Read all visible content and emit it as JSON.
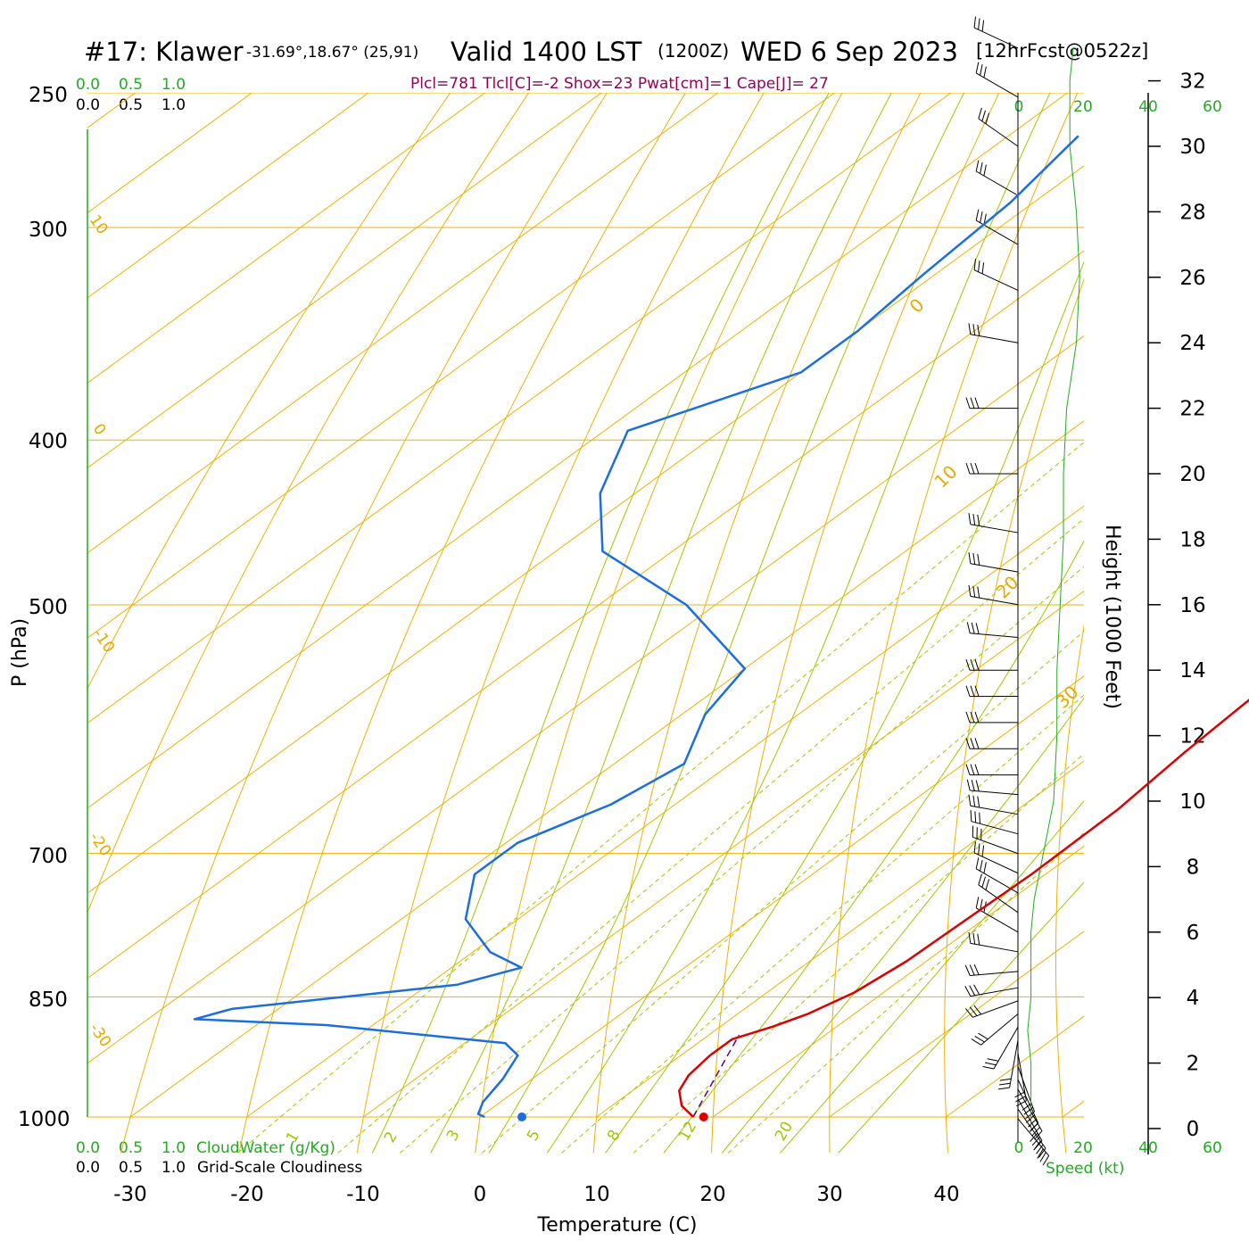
{
  "header": {
    "station": "#17: Klawer",
    "coords": "-31.69°,18.67° (25,91)",
    "valid": "Valid 1400 LST",
    "utc": "(1200Z)",
    "date": "WED 6 Sep 2023",
    "forecast": "[12hrFcst@0522z]",
    "params": "Plcl=781 Tlcl[C]=-2 Shox=23 Pwat[cm]=1 Cape[J]= 27"
  },
  "legend": {
    "cloud_scale": [
      "0.0",
      "0.5",
      "1.0"
    ],
    "cloudwater_label": "CloudWater (g/Kg)",
    "cloudiness_label": "Grid-Scale Cloudiness",
    "speed_label": "Speed (kt)"
  },
  "chart_data": {
    "type": "line",
    "subtype": "skew-T log-p sounding",
    "xlabel": "Temperature (C)",
    "ylabel": "P (hPa)",
    "y2label": "Height (1000 Feet)",
    "x_ticks": [
      "-30",
      "-20",
      "-10",
      "0",
      "10",
      "20",
      "30",
      "40"
    ],
    "y_ticks": [
      "250",
      "300",
      "400",
      "500",
      "700",
      "850",
      "1000"
    ],
    "height_ticks": [
      "0",
      "2",
      "4",
      "6",
      "8",
      "10",
      "12",
      "14",
      "16",
      "18",
      "20",
      "22",
      "24",
      "26",
      "28",
      "30",
      "32"
    ],
    "speed_ticks": [
      "0",
      "20",
      "40",
      "60"
    ],
    "isotherm_labels": [
      "0",
      "10",
      "20",
      "30"
    ],
    "adiabat_labels": [
      "10",
      "0",
      "-10",
      "-20",
      "-30"
    ],
    "mixing_ratio_labels": [
      "1",
      "2",
      "3",
      "5",
      "8",
      "12",
      "20"
    ],
    "colors": {
      "temperature": "#dd0000",
      "dewpoint": "#1a6ee0",
      "parcel": "#660066",
      "isotherm": "#f0b000",
      "dry_adiabat": "#f0b000",
      "moist_adiabat": "#9fc800",
      "mixing_ratio": "#9fc800",
      "wind_speed": "#22aa22",
      "green_text": "#22aa22"
    },
    "series": [
      {
        "key": "temperature",
        "points": [
          [
            18.3,
            1000
          ],
          [
            16,
            985
          ],
          [
            14,
            965
          ],
          [
            13,
            945
          ],
          [
            12.5,
            920
          ],
          [
            12.5,
            900
          ],
          [
            14.5,
            885
          ],
          [
            16,
            870
          ],
          [
            17.5,
            845
          ],
          [
            18.3,
            810
          ],
          [
            18.5,
            770
          ],
          [
            18.8,
            720
          ],
          [
            18.6,
            660
          ],
          [
            17.6,
            610
          ],
          [
            17,
            570
          ],
          [
            16.6,
            530
          ],
          [
            16.1,
            500
          ],
          [
            12.7,
            470
          ],
          [
            5.5,
            430
          ],
          [
            -2.5,
            390
          ],
          [
            -12.5,
            340
          ],
          [
            -22,
            300
          ],
          [
            -35.5,
            262
          ]
        ]
      },
      {
        "key": "dewpoint",
        "points": [
          [
            0.4,
            1000
          ],
          [
            -0.5,
            996
          ],
          [
            -1.5,
            980
          ],
          [
            -2.5,
            950
          ],
          [
            -4,
            920
          ],
          [
            -6.5,
            905
          ],
          [
            -24,
            883
          ],
          [
            -36,
            876
          ],
          [
            -34,
            864
          ],
          [
            -17.5,
            836
          ],
          [
            -14,
            817
          ],
          [
            -18.5,
            800
          ],
          [
            -24.5,
            765
          ],
          [
            -29,
            720
          ],
          [
            -29,
            690
          ],
          [
            -25.5,
            655
          ],
          [
            -24,
            620
          ],
          [
            -28,
            580
          ],
          [
            -30,
            545
          ],
          [
            -42.5,
            500
          ],
          [
            -56,
            465
          ],
          [
            -63,
            430
          ],
          [
            -68,
            395
          ],
          [
            -60,
            365
          ],
          [
            -60,
            345
          ],
          [
            -61,
            320
          ],
          [
            -62,
            290
          ],
          [
            -64,
            265
          ]
        ]
      },
      {
        "key": "parcel",
        "points": [
          [
            18.3,
            1000
          ],
          [
            12.6,
            895
          ]
        ]
      }
    ],
    "surface_points": [
      {
        "series": "temperature",
        "t": 19.2,
        "p": 1000
      },
      {
        "series": "dewpoint",
        "t": 3.6,
        "p": 1000
      }
    ],
    "wind_speed_profile_kt": [
      [
        0,
        4
      ],
      [
        1,
        4
      ],
      [
        2,
        4
      ],
      [
        3,
        3
      ],
      [
        4,
        4
      ],
      [
        5,
        4
      ],
      [
        6,
        4
      ],
      [
        7,
        5
      ],
      [
        8,
        7
      ],
      [
        9,
        9
      ],
      [
        10,
        11
      ],
      [
        12,
        12
      ],
      [
        14,
        12
      ],
      [
        16,
        13
      ],
      [
        18,
        14
      ],
      [
        20,
        14
      ],
      [
        22,
        15
      ],
      [
        24,
        18
      ],
      [
        26,
        19
      ],
      [
        28,
        18
      ],
      [
        30,
        16
      ],
      [
        32,
        16
      ],
      [
        33,
        17
      ]
    ],
    "wind_barbs": [
      {
        "h": 0.3,
        "dir": 220,
        "spd": 10
      },
      {
        "h": 0.6,
        "dir": 215,
        "spd": 10
      },
      {
        "h": 0.9,
        "dir": 210,
        "spd": 10
      },
      {
        "h": 1.2,
        "dir": 210,
        "spd": 10
      },
      {
        "h": 1.5,
        "dir": 205,
        "spd": 10
      },
      {
        "h": 1.9,
        "dir": 200,
        "spd": 10
      },
      {
        "h": 2.3,
        "dir": 190,
        "spd": 10
      },
      {
        "h": 2.7,
        "dir": 170,
        "spd": 10
      },
      {
        "h": 3.1,
        "dir": 150,
        "spd": 10
      },
      {
        "h": 3.5,
        "dir": 130,
        "spd": 10
      },
      {
        "h": 3.9,
        "dir": 110,
        "spd": 10
      },
      {
        "h": 4.3,
        "dir": 100,
        "spd": 10
      },
      {
        "h": 4.8,
        "dir": 95,
        "spd": 10
      },
      {
        "h": 5.4,
        "dir": 80,
        "spd": 10
      },
      {
        "h": 6.0,
        "dir": 60,
        "spd": 10
      },
      {
        "h": 6.6,
        "dir": 55,
        "spd": 10
      },
      {
        "h": 7.2,
        "dir": 60,
        "spd": 10
      },
      {
        "h": 7.8,
        "dir": 65,
        "spd": 10
      },
      {
        "h": 8.4,
        "dir": 70,
        "spd": 10
      },
      {
        "h": 9.0,
        "dir": 75,
        "spd": 10
      },
      {
        "h": 9.6,
        "dir": 80,
        "spd": 10
      },
      {
        "h": 10.2,
        "dir": 85,
        "spd": 10
      },
      {
        "h": 10.8,
        "dir": 90,
        "spd": 10
      },
      {
        "h": 11.6,
        "dir": 90,
        "spd": 10
      },
      {
        "h": 12.4,
        "dir": 90,
        "spd": 10
      },
      {
        "h": 13.2,
        "dir": 90,
        "spd": 10
      },
      {
        "h": 14.0,
        "dir": 90,
        "spd": 10
      },
      {
        "h": 15.0,
        "dir": 85,
        "spd": 10
      },
      {
        "h": 16.0,
        "dir": 80,
        "spd": 10
      },
      {
        "h": 17.0,
        "dir": 80,
        "spd": 10
      },
      {
        "h": 18.2,
        "dir": 80,
        "spd": 10
      },
      {
        "h": 20.0,
        "dir": 90,
        "spd": 10
      },
      {
        "h": 22.0,
        "dir": 90,
        "spd": 10
      },
      {
        "h": 24.0,
        "dir": 80,
        "spd": 10
      },
      {
        "h": 25.6,
        "dir": 65,
        "spd": 10
      },
      {
        "h": 27.0,
        "dir": 60,
        "spd": 10
      },
      {
        "h": 28.5,
        "dir": 60,
        "spd": 10
      },
      {
        "h": 30.0,
        "dir": 55,
        "spd": 10
      },
      {
        "h": 31.5,
        "dir": 60,
        "spd": 10
      },
      {
        "h": 33.0,
        "dir": 65,
        "spd": 10
      }
    ]
  }
}
